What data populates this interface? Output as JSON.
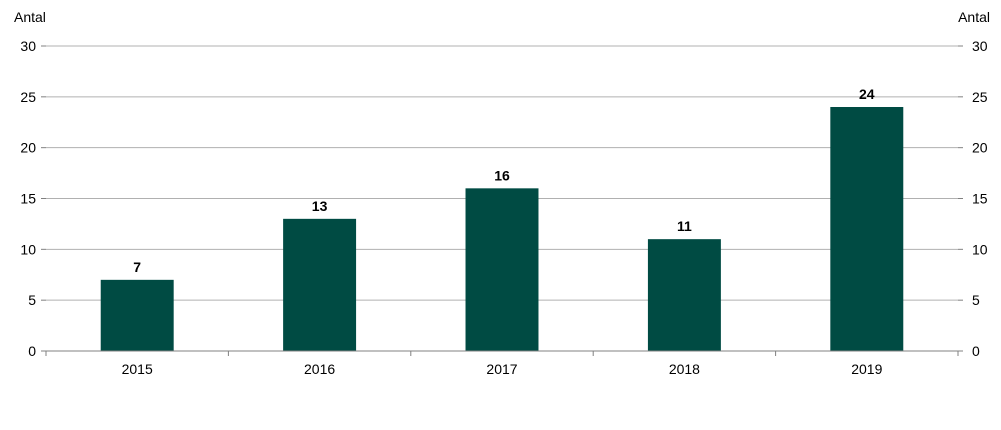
{
  "chart_data": {
    "type": "bar",
    "categories": [
      "2015",
      "2016",
      "2017",
      "2018",
      "2019"
    ],
    "values": [
      7,
      13,
      16,
      11,
      24
    ],
    "data_labels": [
      "7",
      "13",
      "16",
      "11",
      "24"
    ],
    "ylabel_left": "Antal",
    "ylabel_right": "Antal",
    "ylim": [
      0,
      30
    ],
    "yticks": [
      0,
      5,
      10,
      15,
      20,
      25,
      30
    ],
    "ytick_labels": [
      "0",
      "5",
      "10",
      "15",
      "20",
      "25",
      "30"
    ],
    "grid": true,
    "legend": "none",
    "bar_color": "#004B43",
    "grid_color": "#B0B0B0",
    "axis_color": "#808080"
  }
}
